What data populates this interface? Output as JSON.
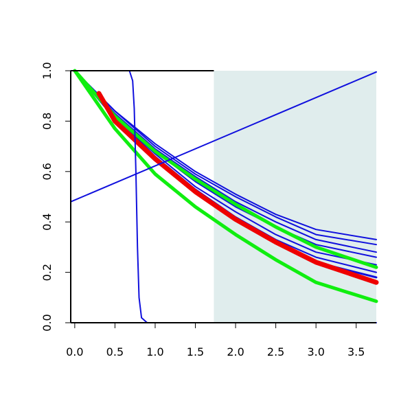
{
  "chart_data": {
    "type": "line",
    "title": "",
    "xlabel": "",
    "ylabel": "",
    "xlim": [
      -0.05,
      3.75
    ],
    "ylim": [
      0,
      1
    ],
    "grid": false,
    "x_ticks": [
      "0.0",
      "0.5",
      "1.0",
      "1.5",
      "2.0",
      "2.5",
      "3.0",
      "3.5"
    ],
    "y_ticks": [
      "0.0",
      "0.2",
      "0.4",
      "0.6",
      "0.8",
      "1.0"
    ],
    "shaded_region": {
      "x_from": 1.73,
      "x_to": 3.75,
      "color": "#e0eded"
    },
    "colors": {
      "blue": "#1010dd",
      "green": "#10ee10",
      "red": "#ee0000",
      "axis": "#000000"
    },
    "series": [
      {
        "color": "blue",
        "width": 2,
        "points": [
          [
            0,
            1
          ],
          [
            0.5,
            0.84
          ],
          [
            1,
            0.71
          ],
          [
            1.5,
            0.6
          ],
          [
            2,
            0.51
          ],
          [
            2.5,
            0.43
          ],
          [
            3,
            0.37
          ],
          [
            3.75,
            0.33
          ]
        ]
      },
      {
        "color": "blue",
        "width": 2,
        "points": [
          [
            0,
            1
          ],
          [
            0.5,
            0.84
          ],
          [
            1,
            0.7
          ],
          [
            1.5,
            0.59
          ],
          [
            2,
            0.5
          ],
          [
            2.5,
            0.42
          ],
          [
            3,
            0.35
          ],
          [
            3.75,
            0.31
          ]
        ]
      },
      {
        "color": "blue",
        "width": 2,
        "points": [
          [
            0,
            1
          ],
          [
            0.5,
            0.83
          ],
          [
            1,
            0.69
          ],
          [
            1.5,
            0.58
          ],
          [
            2,
            0.48
          ],
          [
            2.5,
            0.4
          ],
          [
            3,
            0.33
          ],
          [
            3.75,
            0.28
          ]
        ]
      },
      {
        "color": "blue",
        "width": 2,
        "points": [
          [
            0,
            1
          ],
          [
            0.5,
            0.83
          ],
          [
            1,
            0.68
          ],
          [
            1.5,
            0.56
          ],
          [
            2,
            0.46
          ],
          [
            2.5,
            0.38
          ],
          [
            3,
            0.31
          ],
          [
            3.75,
            0.26
          ]
        ]
      },
      {
        "color": "blue",
        "width": 2,
        "points": [
          [
            0,
            1
          ],
          [
            0.5,
            0.82
          ],
          [
            1,
            0.67
          ],
          [
            1.5,
            0.54
          ],
          [
            2,
            0.44
          ],
          [
            2.5,
            0.35
          ],
          [
            3,
            0.28
          ],
          [
            3.75,
            0.23
          ]
        ]
      },
      {
        "color": "blue",
        "width": 2,
        "points": [
          [
            0,
            1
          ],
          [
            0.5,
            0.82
          ],
          [
            1,
            0.66
          ],
          [
            1.5,
            0.53
          ],
          [
            2,
            0.42
          ],
          [
            2.5,
            0.33
          ],
          [
            3,
            0.26
          ],
          [
            3.75,
            0.2
          ]
        ]
      },
      {
        "color": "blue",
        "width": 3,
        "points": [
          [
            0,
            1
          ],
          [
            0.5,
            0.81
          ],
          [
            1,
            0.65
          ],
          [
            1.5,
            0.52
          ],
          [
            2,
            0.41
          ],
          [
            2.5,
            0.32
          ],
          [
            3,
            0.24
          ],
          [
            3.75,
            0.18
          ]
        ]
      },
      {
        "color": "green",
        "width": 5,
        "points": [
          [
            0,
            1
          ],
          [
            0.5,
            0.82
          ],
          [
            1,
            0.68
          ],
          [
            1.5,
            0.57
          ],
          [
            2,
            0.47
          ],
          [
            2.5,
            0.38
          ],
          [
            3,
            0.3
          ],
          [
            3.75,
            0.22
          ]
        ]
      },
      {
        "color": "red",
        "width": 7,
        "points": [
          [
            0.3,
            0.91
          ],
          [
            0.5,
            0.8
          ],
          [
            1,
            0.65
          ],
          [
            1.5,
            0.52
          ],
          [
            2,
            0.41
          ],
          [
            2.5,
            0.32
          ],
          [
            3,
            0.24
          ],
          [
            3.75,
            0.16
          ]
        ]
      },
      {
        "color": "green",
        "width": 5,
        "points": [
          [
            0,
            1
          ],
          [
            0.5,
            0.77
          ],
          [
            1,
            0.59
          ],
          [
            1.5,
            0.46
          ],
          [
            2,
            0.35
          ],
          [
            2.5,
            0.25
          ],
          [
            3,
            0.16
          ],
          [
            3.75,
            0.085
          ]
        ]
      },
      {
        "color": "blue",
        "width": 2,
        "points": [
          [
            -0.05,
            0.48
          ],
          [
            3.75,
            0.995
          ]
        ]
      },
      {
        "color": "blue",
        "width": 2,
        "points": [
          [
            -0.05,
            1
          ],
          [
            0.68,
            1
          ],
          [
            0.72,
            0.96
          ],
          [
            0.74,
            0.85
          ],
          [
            0.76,
            0.6
          ],
          [
            0.78,
            0.3
          ],
          [
            0.8,
            0.1
          ],
          [
            0.83,
            0.02
          ],
          [
            0.9,
            0
          ],
          [
            3.75,
            0
          ]
        ]
      }
    ]
  }
}
